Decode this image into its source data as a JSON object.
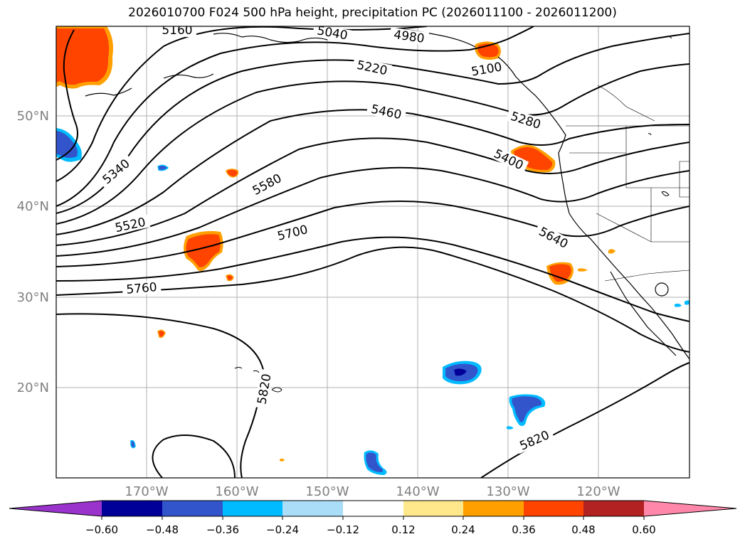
{
  "title": "2026010700 F024 500 hPa height, precipitation PC (2026011100 - 2026011200)",
  "map": {
    "lon_ticks": [
      "170°W",
      "160°W",
      "150°W",
      "140°W",
      "130°W",
      "120°W"
    ],
    "lat_ticks": [
      "50°N",
      "40°N",
      "30°N",
      "20°N"
    ],
    "contour_labels": {
      "c5160": "5160",
      "c5040": "5040",
      "c4980": "4980",
      "c5100": "5100",
      "c5220": "5220",
      "c5460": "5460",
      "c5280": "5280",
      "c5400": "5400",
      "c5340": "5340",
      "c5580": "5580",
      "c5520": "5520",
      "c5700": "5700",
      "c5640": "5640",
      "c5760": "5760",
      "c5820a": "5820",
      "c5820b": "5820"
    }
  },
  "colorbar": {
    "ticks": [
      "−0.60",
      "−0.48",
      "−0.36",
      "−0.24",
      "−0.12",
      "0.12",
      "0.24",
      "0.36",
      "0.48",
      "0.60"
    ],
    "colors": [
      "#9933cc",
      "#000099",
      "#3355cc",
      "#00bbff",
      "#aaddf8",
      "#ffffff",
      "#ffe88c",
      "#ffa000",
      "#ff4400",
      "#b22222",
      "#ff88aa"
    ]
  }
}
